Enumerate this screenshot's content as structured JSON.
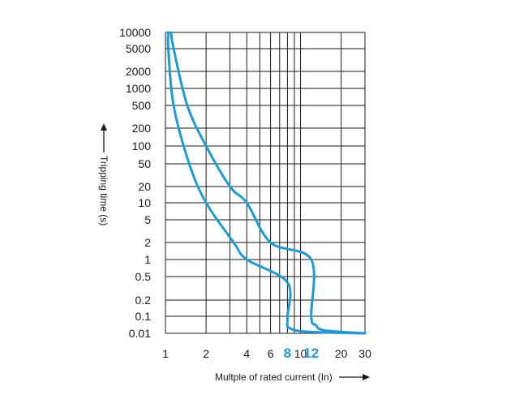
{
  "chart_data": {
    "type": "line",
    "title": "",
    "xlabel": "Multple of rated current (In)",
    "ylabel": "Tripping time (s)",
    "x_scale": "log",
    "y_scale": "categorical-log",
    "xlim": [
      1,
      30
    ],
    "y_ticks": [
      "10000",
      "5000",
      "2000",
      "1000",
      "500",
      "200",
      "100",
      "50",
      "20",
      "10",
      "5",
      "2",
      "1",
      "0.5",
      "0.2",
      "0.1",
      "0.01"
    ],
    "x_ticks": [
      {
        "value": 1,
        "label": "1",
        "highlight": false
      },
      {
        "value": 2,
        "label": "2",
        "highlight": false
      },
      {
        "value": 4,
        "label": "4",
        "highlight": false
      },
      {
        "value": 6,
        "label": "6",
        "highlight": false
      },
      {
        "value": 8,
        "label": "8",
        "highlight": true
      },
      {
        "value": 10,
        "label": "10",
        "highlight": false
      },
      {
        "value": 12,
        "label": "12",
        "highlight": true
      },
      {
        "value": 20,
        "label": "20",
        "highlight": false
      },
      {
        "value": 30,
        "label": "30",
        "highlight": false
      }
    ],
    "grid": true,
    "series": [
      {
        "points": [
          [
            1.05,
            10000
          ],
          [
            1.05,
            5000
          ],
          [
            1.15,
            500
          ],
          [
            1.5,
            50
          ],
          [
            2,
            10
          ],
          [
            3.2,
            2
          ],
          [
            4,
            1
          ],
          [
            8,
            0.4
          ],
          [
            8,
            0.08
          ],
          [
            8.3,
            0.02
          ],
          [
            12,
            0.012
          ],
          [
            30,
            0.01
          ]
        ]
      },
      {
        "points": [
          [
            1.1,
            10000
          ],
          [
            1.15,
            5000
          ],
          [
            1.45,
            500
          ],
          [
            2,
            100
          ],
          [
            3,
            20
          ],
          [
            4,
            10
          ],
          [
            6,
            2
          ],
          [
            12,
            1
          ],
          [
            12,
            0.1
          ],
          [
            13,
            0.03
          ],
          [
            15,
            0.015
          ],
          [
            30,
            0.01
          ]
        ]
      }
    ],
    "colors": {
      "curve": "#1d9bd6",
      "grid": "#1a1a1a",
      "text": "#1a1a1a",
      "highlight": "#1d9bd6"
    }
  }
}
